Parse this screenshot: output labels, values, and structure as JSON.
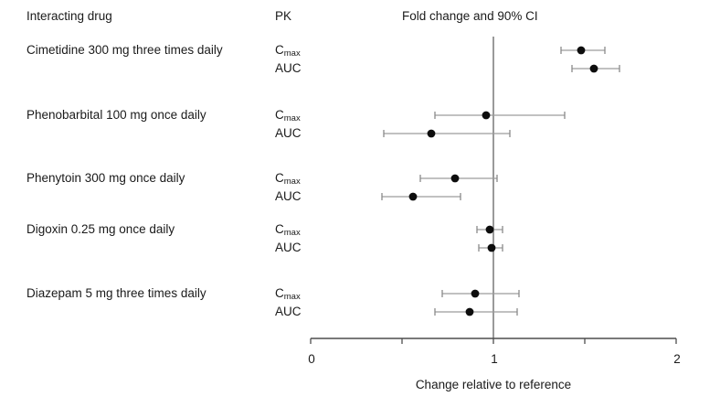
{
  "header": {
    "col_drug": "Interacting drug",
    "col_pk": "PK",
    "col_plot": "Fold change and 90% CI"
  },
  "chart_data": {
    "type": "forest",
    "title": "Fold change and 90% CI",
    "xlabel": "Change relative to reference",
    "xlim": [
      0,
      2
    ],
    "reference_value": 1,
    "ci_level": "90%",
    "ticks": [
      {
        "value": 0,
        "label": "0"
      },
      {
        "value": 0.5,
        "label": ""
      },
      {
        "value": 1,
        "label": "1"
      },
      {
        "value": 1.5,
        "label": ""
      },
      {
        "value": 2,
        "label": "2"
      }
    ],
    "groups": [
      {
        "drug": "Cimetidine 300 mg three times daily",
        "rows": [
          {
            "pk_base": "C",
            "pk_sub": "max",
            "estimate": 1.48,
            "ci_low": 1.37,
            "ci_high": 1.61
          },
          {
            "pk_base": "AUC",
            "pk_sub": "",
            "estimate": 1.55,
            "ci_low": 1.43,
            "ci_high": 1.69
          }
        ]
      },
      {
        "drug": "Phenobarbital 100 mg once daily",
        "rows": [
          {
            "pk_base": "C",
            "pk_sub": "max",
            "estimate": 0.96,
            "ci_low": 0.68,
            "ci_high": 1.39
          },
          {
            "pk_base": "AUC",
            "pk_sub": "",
            "estimate": 0.66,
            "ci_low": 0.4,
            "ci_high": 1.09
          }
        ]
      },
      {
        "drug": "Phenytoin 300 mg once daily",
        "rows": [
          {
            "pk_base": "C",
            "pk_sub": "max",
            "estimate": 0.79,
            "ci_low": 0.6,
            "ci_high": 1.02
          },
          {
            "pk_base": "AUC",
            "pk_sub": "",
            "estimate": 0.56,
            "ci_low": 0.39,
            "ci_high": 0.82
          }
        ]
      },
      {
        "drug": "Digoxin 0.25 mg once daily",
        "rows": [
          {
            "pk_base": "C",
            "pk_sub": "max",
            "estimate": 0.98,
            "ci_low": 0.91,
            "ci_high": 1.05
          },
          {
            "pk_base": "AUC",
            "pk_sub": "",
            "estimate": 0.99,
            "ci_low": 0.92,
            "ci_high": 1.05
          }
        ]
      },
      {
        "drug": "Diazepam 5 mg three times daily",
        "rows": [
          {
            "pk_base": "C",
            "pk_sub": "max",
            "estimate": 0.9,
            "ci_low": 0.72,
            "ci_high": 1.14
          },
          {
            "pk_base": "AUC",
            "pk_sub": "",
            "estimate": 0.87,
            "ci_low": 0.68,
            "ci_high": 1.13
          }
        ]
      }
    ]
  },
  "colors": {
    "marker": "#0d0d0d",
    "ci_line": "#9c9c9c",
    "ci_cap": "#8a8a8a",
    "reference_line": "#8f8f8f",
    "axis": "#4d4d4d",
    "text": "#1a1a1a"
  }
}
